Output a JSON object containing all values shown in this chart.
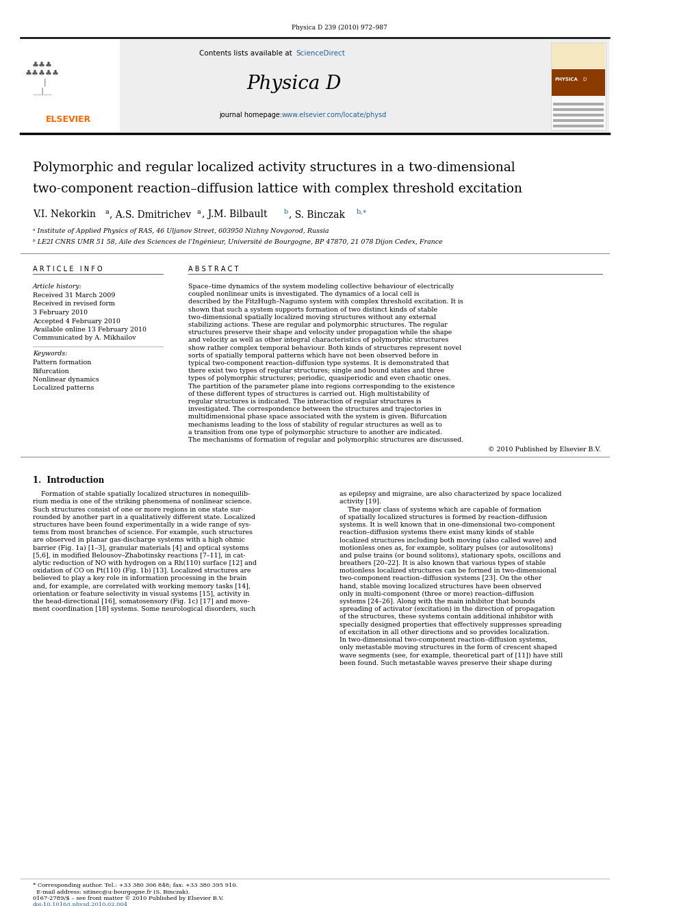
{
  "page_width": 9.92,
  "page_height": 13.23,
  "bg_color": "#ffffff",
  "journal_ref": "Physica D 239 (2010) 972–987",
  "journal_name": "Physica D",
  "contents_text": "Contents lists available at ScienceDirect",
  "sciencedirect_color": "#2060a0",
  "journal_homepage": "journal homepage: www.elsevier.com/locate/physd",
  "homepage_color": "#2060a0",
  "header_bg": "#eeeeee",
  "title_line1": "Polymorphic and regular localized activity structures in a two-dimensional",
  "title_line2": "two-component reaction–diffusion lattice with complex threshold excitation",
  "affil_a": "ᵃ Institute of Applied Physics of RAS, 46 Uljanov Street, 603950 Nizhny Novgorod, Russia",
  "affil_b": "ᵇ LE2I CNRS UMR 51 58, Aile des Sciences de l’Ingénieur, Université de Bourgogne, BP 47870, 21 078 Dijon Cedex, France",
  "article_info_title": "A R T I C L E   I N F O",
  "abstract_title": "A B S T R A C T",
  "keywords": [
    "Pattern formation",
    "Bifurcation",
    "Nonlinear dynamics",
    "Localized patterns"
  ],
  "abstract_text": "Space–time dynamics of the system modeling collective behaviour of electrically coupled nonlinear units is investigated. The dynamics of a local cell is described by the FitzHugh–Nagumo system with complex threshold excitation. It is shown that such a system supports formation of two distinct kinds of stable two-dimensional spatially localized moving structures without any external stabilizing actions. These are regular and polymorphic structures. The regular structures preserve their shape and velocity under propagation while the shape and velocity as well as other integral characteristics of polymorphic structures show rather complex temporal behaviour. Both kinds of structures represent novel sorts of spatially temporal patterns which have not been observed before in typical two-component reaction–diffusion type systems. It is demonstrated that there exist two types of regular structures; single and bound states and three types of polymorphic structures; periodic, quasiperiodic and even chaotic ones. The partition of the parameter plane into regions corresponding to the existence of these different types of structures is carried out. High multistability of regular structures is indicated. The interaction of regular structures is investigated. The correspondence between the structures and trajectories in multidimensional phase space associated with the system is given. Bifurcation mechanisms leading to the loss of stability of regular structures as well as to a transition from one type of polymorphic structure to another are indicated. The mechanisms of formation of regular and polymorphic structures are discussed.",
  "copyright": "© 2010 Published by Elsevier B.V.",
  "intro_col1_lines": [
    "    Formation of stable spatially localized structures in nonequilib-",
    "rium media is one of the striking phenomena of nonlinear science.",
    "Such structures consist of one or more regions in one state sur-",
    "rounded by another part in a qualitatively different state. Localized",
    "structures have been found experimentally in a wide range of sys-",
    "tems from most branches of science. For example, such structures",
    "are observed in planar gas-discharge systems with a high ohmic",
    "barrier (Fig. 1a) [1–3], granular materials [4] and optical systems",
    "[5,6], in modified Belousov–Zhabotinsky reactions [7–11], in cat-",
    "alytic reduction of NO with hydrogen on a Rh(110) surface [12] and",
    "oxidation of CO on Pt(110) (Fig. 1b) [13]. Localized structures are",
    "believed to play a key role in information processing in the brain",
    "and, for example, are correlated with working memory tasks [14],",
    "orientation or feature selectivity in visual systems [15], activity in",
    "the head-directional [16], somatosensory (Fig. 1c) [17] and move-",
    "ment coordination [18] systems. Some neurological disorders, such"
  ],
  "intro_col2_lines": [
    "as epilepsy and migraine, are also characterized by space localized",
    "activity [19].",
    "    The major class of systems which are capable of formation",
    "of spatially localized structures is formed by reaction–diffusion",
    "systems. It is well known that in one-dimensional two-component",
    "reaction–diffusion systems there exist many kinds of stable",
    "localized structures including both moving (also called wave) and",
    "motionless ones as, for example, solitary pulses (or autosolitons)",
    "and pulse trains (or bound solitons), stationary spots, oscillons and",
    "breathers [20–22]. It is also known that various types of stable",
    "motionless localized structures can be formed in two-dimensional",
    "two-component reaction–diffusion systems [23]. On the other",
    "hand, stable moving localized structures have been observed",
    "only in multi-component (three or more) reaction–diffusion",
    "systems [24–26]. Along with the main inhibitor that bounds",
    "spreading of activator (excitation) in the direction of propagation",
    "of the structures, these systems contain additional inhibitor with",
    "specially designed properties that effectively suppresses spreading",
    "of excitation in all other directions and so provides localization.",
    "In two-dimensional two-component reaction–diffusion systems,",
    "only metastable moving structures in the form of crescent shaped",
    "wave segments (see, for example, theoretical part of [11]) have still",
    "been found. Such metastable waves preserve their shape during"
  ],
  "footer_footnote_1": "* Corresponding author. Tel.: +33 380 306 848; fax: +33 380 395 910.",
  "footer_footnote_2": "  E-mail address: sitinec@u-bourgogne.fr (S. Binczak).",
  "footer_left_1": "0167-2789/$ – see front matter © 2010 Published by Elsevier B.V.",
  "footer_left_2": "doi:10.1016/j.physd.2010.02.004",
  "elsevier_color": "#ff6600",
  "blue_link_color": "#2060a0"
}
